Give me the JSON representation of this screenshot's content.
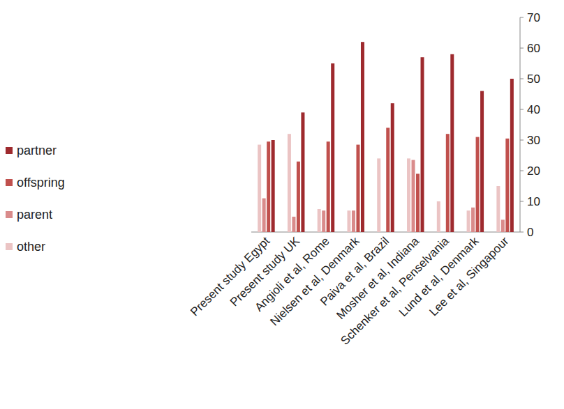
{
  "chart_data": {
    "type": "bar",
    "categories": [
      "Present study Egypt",
      "Present study UK",
      "Angioli et al, Rome",
      "Nielsen et al, Denmark",
      "Paiva et al, Brazil",
      "Mosher et al, Indiana",
      "Schenker et al, Penselvania",
      "Lund et al, Denmark",
      "Lee et al, Singapour"
    ],
    "series": [
      {
        "name": "other",
        "color": "#ebc4c4",
        "values": [
          28.5,
          32,
          7.5,
          7,
          24,
          24,
          10,
          7,
          15
        ]
      },
      {
        "name": "parent",
        "color": "#d98b8b",
        "values": [
          11,
          5,
          7,
          7,
          0,
          23.5,
          0,
          8,
          4
        ]
      },
      {
        "name": "offspring",
        "color": "#c0504d",
        "values": [
          29.5,
          23,
          29.5,
          28.5,
          34,
          19,
          32,
          31,
          30.5
        ]
      },
      {
        "name": "partner",
        "color": "#9e2a2e",
        "values": [
          30,
          39,
          55,
          62,
          42,
          57,
          58,
          46,
          50
        ]
      }
    ],
    "ylim": [
      0,
      70
    ],
    "yticks": [
      0,
      10,
      20,
      30,
      40,
      50,
      60,
      70
    ],
    "grid": false,
    "legend": "left"
  }
}
